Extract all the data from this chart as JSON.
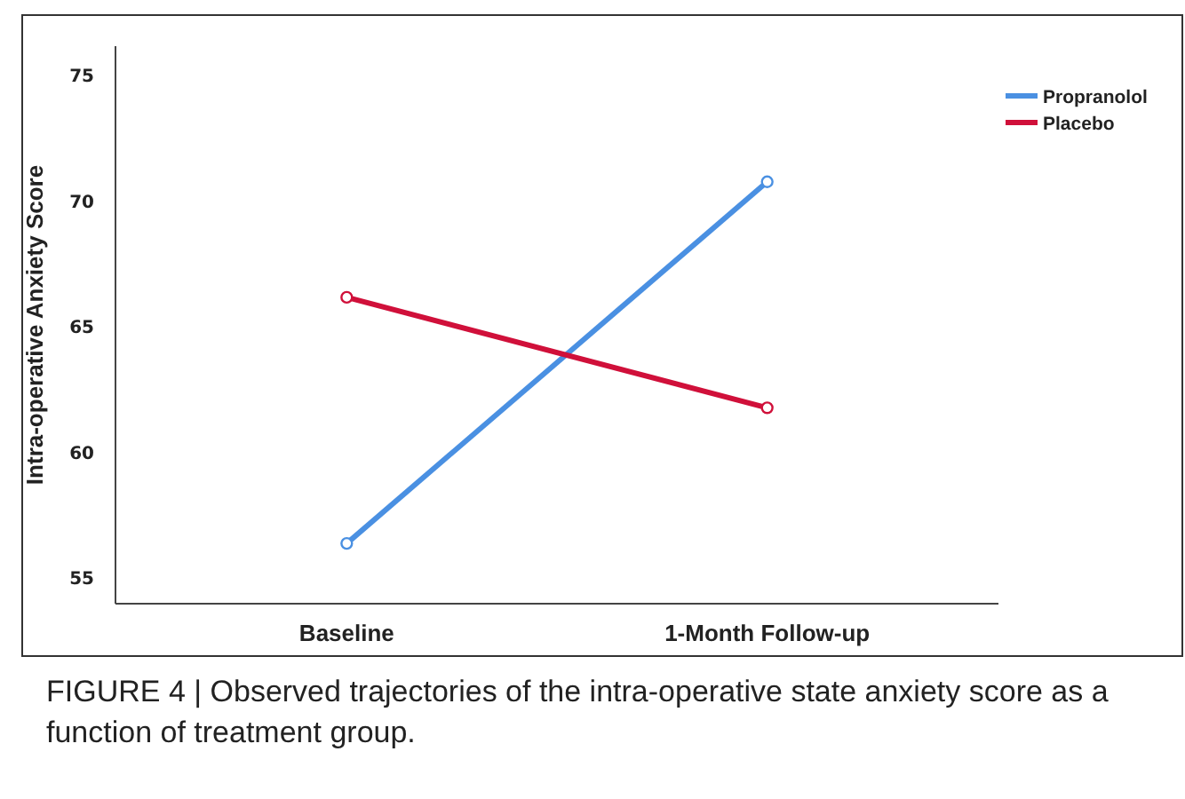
{
  "chart_data": {
    "type": "line",
    "ylabel": "Intra-operative Anxiety Score",
    "categories": [
      "Baseline",
      "1-Month Follow-up"
    ],
    "series": [
      {
        "name": "Propranolol",
        "color": "#4a90e2",
        "values": [
          56.4,
          70.8
        ]
      },
      {
        "name": "Placebo",
        "color": "#d0103a",
        "values": [
          66.2,
          61.8
        ]
      }
    ],
    "ylim": [
      54,
      76.2
    ],
    "yticks": [
      55,
      60,
      65,
      70,
      75
    ],
    "grid": false,
    "legend": "top right",
    "marker": "circle",
    "annotations": [
      "FIGURE 4 | Observed trajectories of the intra-operative state anxiety score as a function of treatment group."
    ]
  }
}
